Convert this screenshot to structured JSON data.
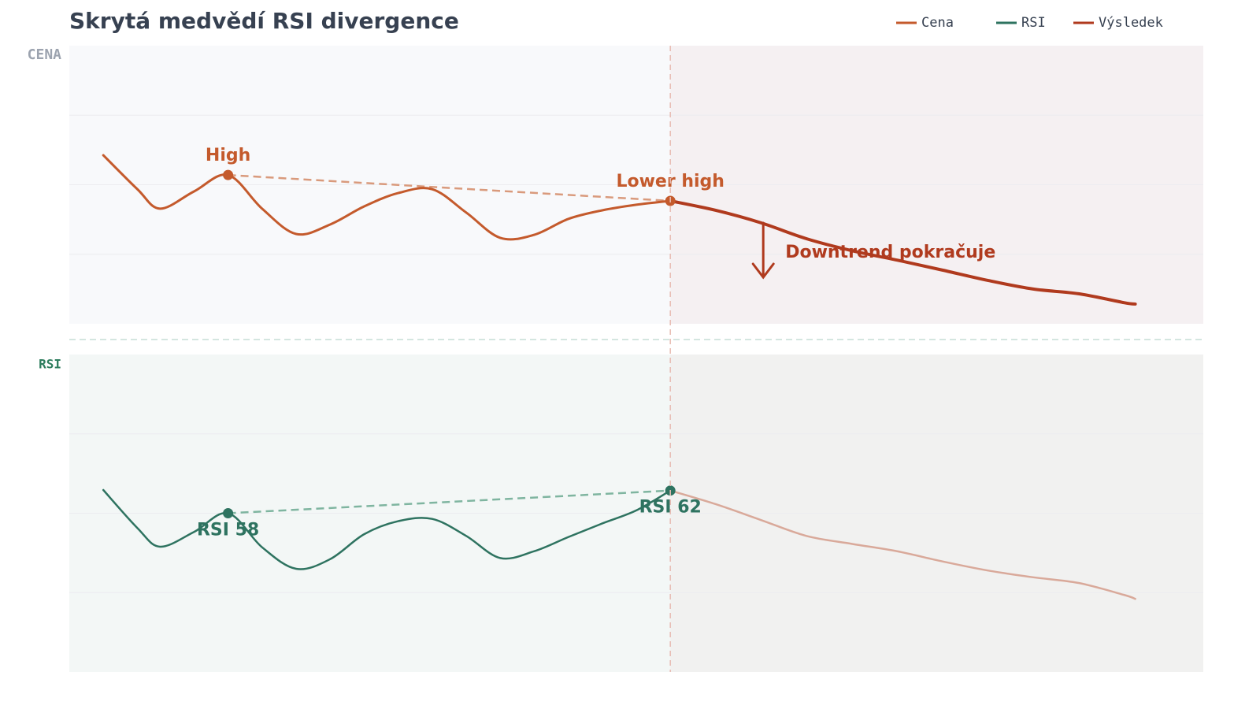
{
  "chart_data": [
    {
      "type": "line",
      "title": "Skrytá medvědí RSI divergence",
      "panel_label": "CENA",
      "xlim": [
        -3,
        97
      ],
      "ylim": [
        0,
        100
      ],
      "yticks": [
        25,
        50,
        75
      ],
      "grid": true,
      "series": [
        {
          "name": "Cena",
          "color": "#c45a2c",
          "x": [
            0,
            3,
            5,
            8,
            11,
            14,
            17,
            20,
            23,
            26,
            29,
            32,
            35,
            38,
            41,
            44,
            47,
            50
          ],
          "values": [
            60.6,
            48.4,
            41.4,
            47.6,
            53.5,
            41.4,
            32.3,
            35.7,
            42.2,
            47,
            48.4,
            40,
            30.9,
            32,
            37.7,
            40.8,
            42.8,
            44.2
          ]
        },
        {
          "name": "Výsledek",
          "color": "#b03a1e",
          "x": [
            50,
            54,
            58,
            62,
            66,
            70,
            74,
            78,
            82,
            86,
            90,
            91
          ],
          "values": [
            44.2,
            40.8,
            36.3,
            30.6,
            26.3,
            22.9,
            19.3,
            15.6,
            12.5,
            10.8,
            7.6,
            7.1
          ]
        }
      ],
      "highlights": [
        {
          "label": "High",
          "x": 11,
          "value": 53.5
        },
        {
          "label": "Lower high",
          "x": 50,
          "value": 44.2
        }
      ],
      "annotation": "Downtrend pokračuje"
    },
    {
      "type": "line",
      "panel_label": "RSI",
      "xlim": [
        -3,
        97
      ],
      "ylim": [
        30,
        86
      ],
      "yticks": [
        44,
        58,
        72
      ],
      "grid": true,
      "series": [
        {
          "name": "RSI",
          "color": "#2e7360",
          "x": [
            0,
            3,
            5,
            8,
            11,
            14,
            17,
            20,
            23,
            26,
            29,
            32,
            35,
            38,
            41,
            44,
            47,
            50
          ],
          "values": [
            62.1,
            55.4,
            52.1,
            54.7,
            58,
            52,
            48.2,
            49.9,
            54.3,
            56.6,
            57,
            54,
            50.1,
            51.3,
            53.8,
            56.2,
            58.5,
            62
          ]
        },
        {
          "name": "Výsledek",
          "color": "#d9a99a",
          "x": [
            50,
            54,
            58,
            62,
            66,
            70,
            74,
            78,
            82,
            86,
            90,
            91
          ],
          "values": [
            62,
            59.6,
            56.8,
            54,
            52.6,
            51.3,
            49.5,
            47.9,
            46.7,
            45.7,
            43.6,
            42.9
          ]
        }
      ],
      "highlights": [
        {
          "label": "RSI 58",
          "x": 11,
          "value": 58
        },
        {
          "label": "RSI 62",
          "x": 50,
          "value": 62
        }
      ]
    }
  ]
}
